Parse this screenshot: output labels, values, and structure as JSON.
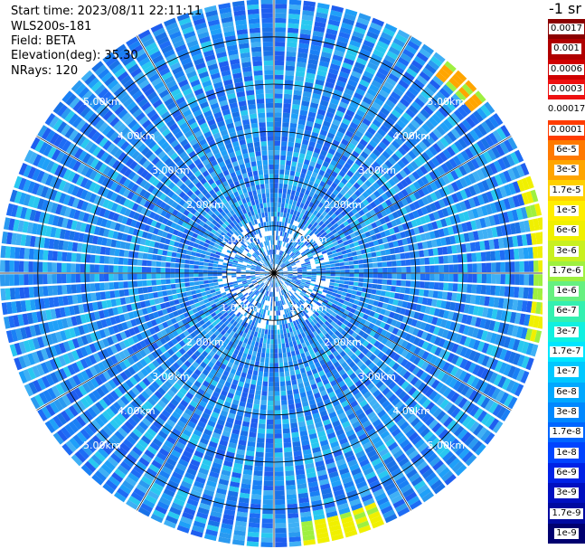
{
  "header": {
    "start_label": "Start time:",
    "start_value": "2023/08/11 22:11:11",
    "instrument": "WLS200s-181",
    "field_label": "Field:",
    "field_value": "BETA",
    "elevation_label": "Elevation(deg):",
    "elevation_value": "35.30",
    "nrays_label": "NRays:",
    "nrays_value": "120"
  },
  "colorbar": {
    "title": "-1 sr",
    "levels": [
      {
        "label": "0.0017",
        "color": "#8b0000"
      },
      {
        "label": "0.001",
        "color": "#b00000"
      },
      {
        "label": "0.0006",
        "color": "#d00000"
      },
      {
        "label": "0.0003",
        "color": "#ee1010"
      },
      {
        "label": "0.00017",
        "color": "#ffffff"
      },
      {
        "label": "0.0001",
        "color": "#ff3c00"
      },
      {
        "label": "6e-5",
        "color": "#ff7a00"
      },
      {
        "label": "3e-5",
        "color": "#ffa500"
      },
      {
        "label": "1.7e-5",
        "color": "#ffd000"
      },
      {
        "label": "1e-5",
        "color": "#ffee00"
      },
      {
        "label": "6e-6",
        "color": "#f0f000"
      },
      {
        "label": "3e-6",
        "color": "#c8f020"
      },
      {
        "label": "1.7e-6",
        "color": "#9ef040"
      },
      {
        "label": "1e-6",
        "color": "#66f080"
      },
      {
        "label": "6e-7",
        "color": "#33f0b0"
      },
      {
        "label": "3e-7",
        "color": "#10f0e0"
      },
      {
        "label": "1.7e-7",
        "color": "#00e6ff"
      },
      {
        "label": "1e-7",
        "color": "#00c8ff"
      },
      {
        "label": "6e-8",
        "color": "#00a8ff"
      },
      {
        "label": "3e-8",
        "color": "#0088ff"
      },
      {
        "label": "1.7e-8",
        "color": "#0066ff"
      },
      {
        "label": "1e-8",
        "color": "#0044ff"
      },
      {
        "label": "6e-9",
        "color": "#0022e6"
      },
      {
        "label": "3e-9",
        "color": "#0010c0"
      },
      {
        "label": "1.7e-9",
        "color": "#000aa0"
      },
      {
        "label": "1e-9",
        "color": "#000070"
      }
    ]
  },
  "chart_data": {
    "type": "heatmap",
    "projection": "polar PPI",
    "title": "",
    "range_rings_km": [
      1,
      2,
      3,
      4,
      5
    ],
    "range_ring_labels": [
      "1.00km",
      "2.00km",
      "3.00km",
      "4.00km",
      "5.00km"
    ],
    "max_range_km": 5.8,
    "nrays": 120,
    "dominant_value_range": [
      "3e-8",
      "3e-7"
    ],
    "notable_regions": [
      {
        "description": "yellow/orange high returns",
        "azimuth_deg_range": [
          40,
          50
        ],
        "range_km_range": [
          5.4,
          5.8
        ],
        "value": "3e-5"
      },
      {
        "description": "yellow high returns",
        "azimuth_deg_range": [
          70,
          105
        ],
        "range_km_range": [
          5.5,
          5.8
        ],
        "value": "6e-6"
      },
      {
        "description": "yellow high returns",
        "azimuth_deg_range": [
          155,
          175
        ],
        "range_km_range": [
          5.3,
          5.8
        ],
        "value": "6e-6"
      }
    ]
  }
}
